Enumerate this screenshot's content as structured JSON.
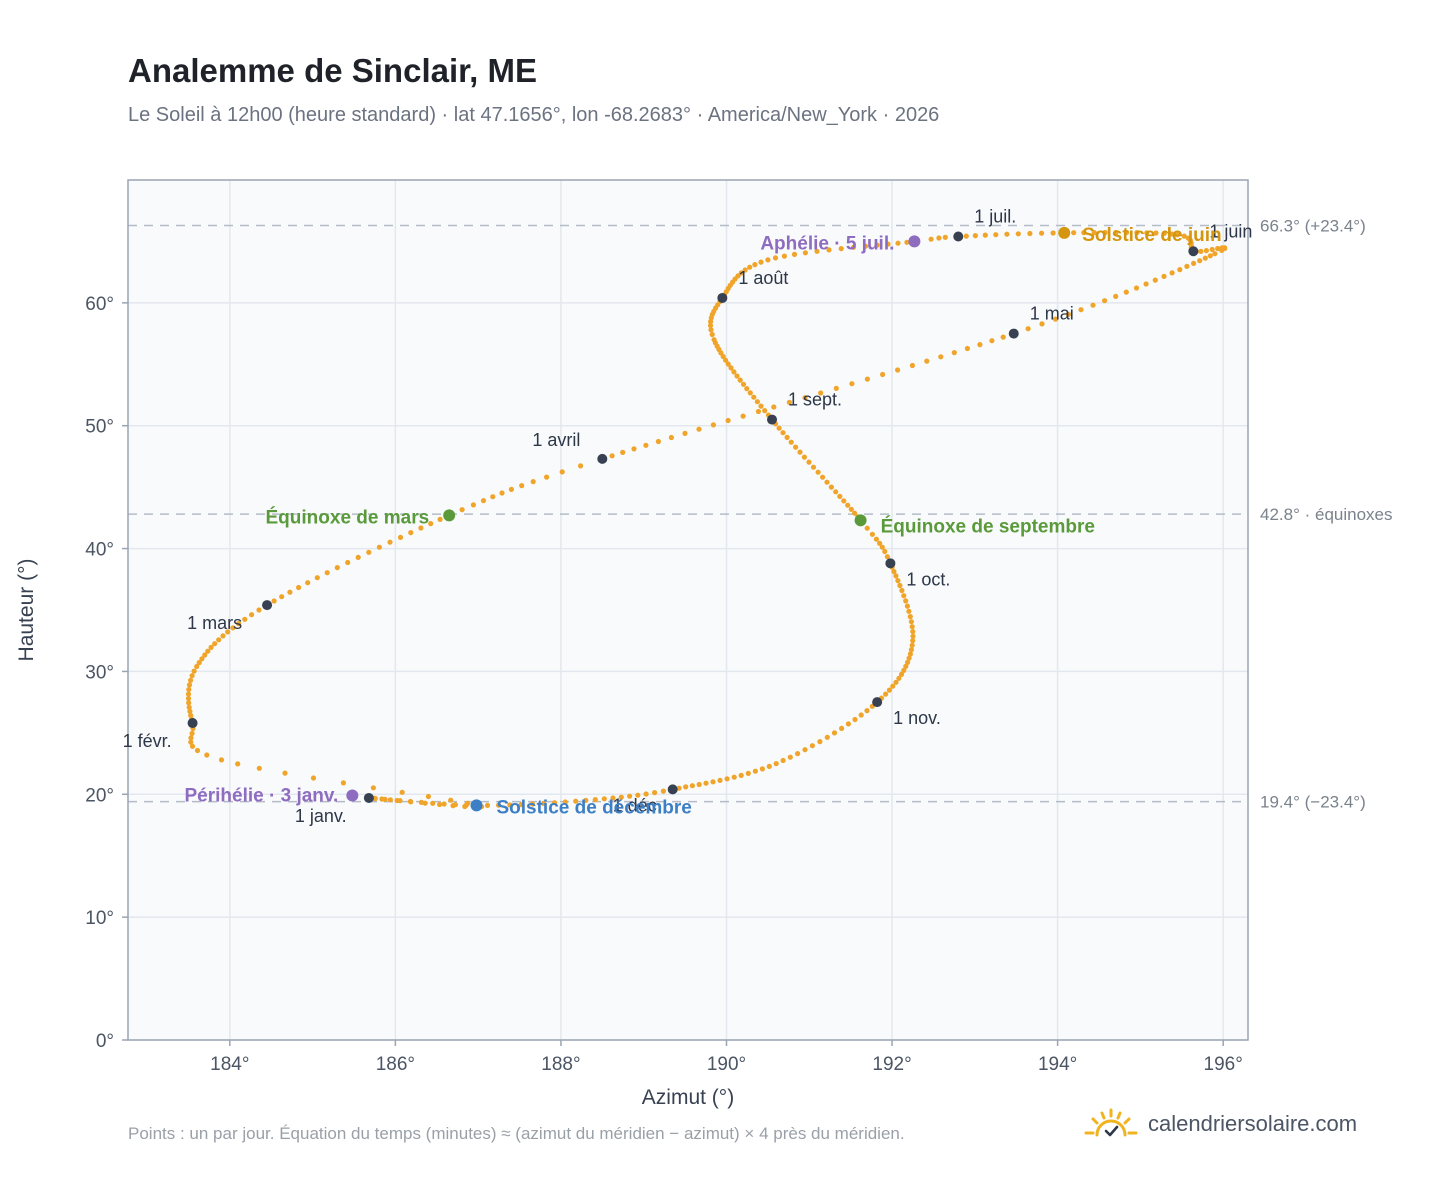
{
  "header": {
    "title": "Analemme de Sinclair, ME",
    "subtitle": "Le Soleil à 12h00 (heure standard) · lat 47.1656°, lon -68.2683° · America/New_York · 2026"
  },
  "footer": {
    "note": "Points : un par jour. Équation du temps (minutes) ≈ (azimut du méridien − azimut) × 4 près du méridien.",
    "brand": "calendriersolaire.com",
    "brand_icon": "sun-icon"
  },
  "chart_data": {
    "type": "scatter",
    "xlabel": "Azimut (°)",
    "ylabel": "Hauteur (°)",
    "xlim": [
      182.77,
      196.3
    ],
    "ylim": [
      0,
      70
    ],
    "xticks": [
      184,
      186,
      188,
      190,
      192,
      194,
      196
    ],
    "xtick_labels": [
      "184°",
      "186°",
      "188°",
      "190°",
      "192°",
      "194°",
      "196°"
    ],
    "yticks": [
      0,
      10,
      20,
      30,
      40,
      50,
      60
    ],
    "ytick_labels": [
      "0°",
      "10°",
      "20°",
      "30°",
      "40°",
      "50°",
      "60°"
    ],
    "grid": true,
    "reference_lines": [
      {
        "y": 66.3,
        "label": "66.3° (+23.4°)"
      },
      {
        "y": 42.8,
        "label": "42.8° · équinoxes"
      },
      {
        "y": 19.4,
        "label": "19.4° (−23.4°)"
      }
    ],
    "series": [
      {
        "points_per": "day",
        "color": "#f0a52a",
        "path_keypoints": [
          {
            "doy": 1,
            "az": 185.68,
            "alt": 19.7
          },
          {
            "doy": 13,
            "az": 187.0,
            "alt": 19.1
          },
          {
            "doy": 24,
            "az": 183.9,
            "alt": 22.8
          },
          {
            "doy": 32,
            "az": 183.55,
            "alt": 25.8
          },
          {
            "doy": 45,
            "az": 183.6,
            "alt": 30.4
          },
          {
            "doy": 60,
            "az": 184.45,
            "alt": 35.4
          },
          {
            "doy": 79,
            "az": 186.65,
            "alt": 42.7
          },
          {
            "doy": 91,
            "az": 188.5,
            "alt": 47.3
          },
          {
            "doy": 121,
            "az": 193.47,
            "alt": 57.5
          },
          {
            "doy": 142,
            "az": 195.9,
            "alt": 64.0
          },
          {
            "doy": 152,
            "az": 195.64,
            "alt": 64.2
          },
          {
            "doy": 160,
            "az": 195.45,
            "alt": 65.55
          },
          {
            "doy": 172,
            "az": 194.08,
            "alt": 65.7
          },
          {
            "doy": 182,
            "az": 192.8,
            "alt": 65.4
          },
          {
            "doy": 186,
            "az": 192.27,
            "alt": 65.0
          },
          {
            "doy": 200,
            "az": 190.5,
            "alt": 63.5
          },
          {
            "doy": 213,
            "az": 189.95,
            "alt": 60.4
          },
          {
            "doy": 224,
            "az": 189.85,
            "alt": 57.0
          },
          {
            "doy": 244,
            "az": 190.55,
            "alt": 50.5
          },
          {
            "doy": 266,
            "az": 191.62,
            "alt": 42.3
          },
          {
            "doy": 274,
            "az": 191.98,
            "alt": 38.8
          },
          {
            "doy": 290,
            "az": 192.25,
            "alt": 32.5
          },
          {
            "doy": 305,
            "az": 191.82,
            "alt": 27.5
          },
          {
            "doy": 320,
            "az": 190.6,
            "alt": 22.5
          },
          {
            "doy": 335,
            "az": 189.35,
            "alt": 20.4
          },
          {
            "doy": 345,
            "az": 188.3,
            "alt": 19.5
          },
          {
            "doy": 355,
            "az": 186.98,
            "alt": 19.1
          },
          {
            "doy": 366,
            "az": 185.68,
            "alt": 19.7
          }
        ]
      }
    ],
    "month_markers": [
      {
        "label": "1 janv.",
        "az": 185.68,
        "alt": 19.7
      },
      {
        "label": "1 févr.",
        "az": 183.55,
        "alt": 25.8
      },
      {
        "label": "1 mars",
        "az": 184.45,
        "alt": 35.4
      },
      {
        "label": "1 avril",
        "az": 188.5,
        "alt": 47.3
      },
      {
        "label": "1 mai",
        "az": 193.47,
        "alt": 57.5
      },
      {
        "label": "1 juin",
        "az": 195.64,
        "alt": 64.2
      },
      {
        "label": "1 juil.",
        "az": 192.8,
        "alt": 65.4
      },
      {
        "label": "1 août",
        "az": 189.95,
        "alt": 60.4
      },
      {
        "label": "1 sept.",
        "az": 190.55,
        "alt": 50.5
      },
      {
        "label": "1 oct.",
        "az": 191.98,
        "alt": 38.8
      },
      {
        "label": "1 nov.",
        "az": 191.82,
        "alt": 27.5
      },
      {
        "label": "1 déc.",
        "az": 189.35,
        "alt": 20.4
      }
    ],
    "events": [
      {
        "label": "Périhélie · 3 janv.",
        "az": 185.48,
        "alt": 19.9,
        "color": "#8e6cbf"
      },
      {
        "label": "Équinoxe de mars",
        "az": 186.65,
        "alt": 42.7,
        "color": "#5a9a3a"
      },
      {
        "label": "Solstice de juin",
        "az": 194.08,
        "alt": 65.7,
        "color": "#d4960f"
      },
      {
        "label": "Aphélie · 5 juil.",
        "az": 192.27,
        "alt": 65.0,
        "color": "#8e6cbf"
      },
      {
        "label": "Équinoxe de septembre",
        "az": 191.62,
        "alt": 42.3,
        "color": "#5a9a3a"
      },
      {
        "label": "Solstice de décembre",
        "az": 186.98,
        "alt": 19.1,
        "color": "#3d7fc4"
      }
    ]
  }
}
